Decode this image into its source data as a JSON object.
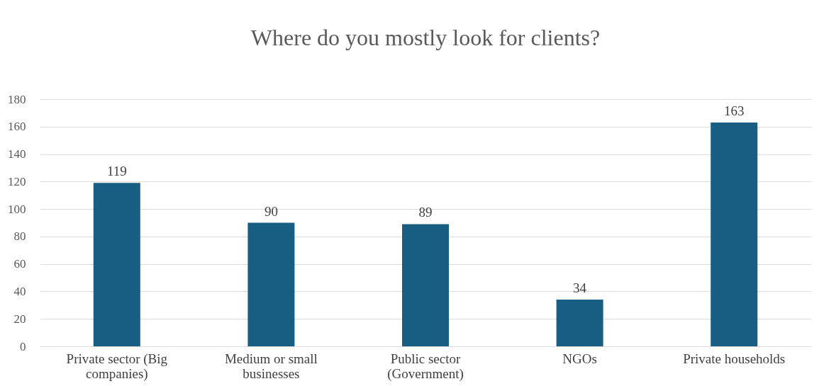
{
  "chart_data": {
    "type": "bar",
    "title": "Where do you mostly look for clients?",
    "categories": [
      "Private sector (Big companies)",
      "Medium or small businesses",
      "Public sector (Government)",
      "NGOs",
      "Private households"
    ],
    "values": [
      119,
      90,
      89,
      34,
      163
    ],
    "color": "#175e82",
    "ylim": [
      0,
      180
    ],
    "yticks": [
      0,
      20,
      40,
      60,
      80,
      100,
      120,
      140,
      160,
      180
    ],
    "grid": "y",
    "data_labels": true
  }
}
